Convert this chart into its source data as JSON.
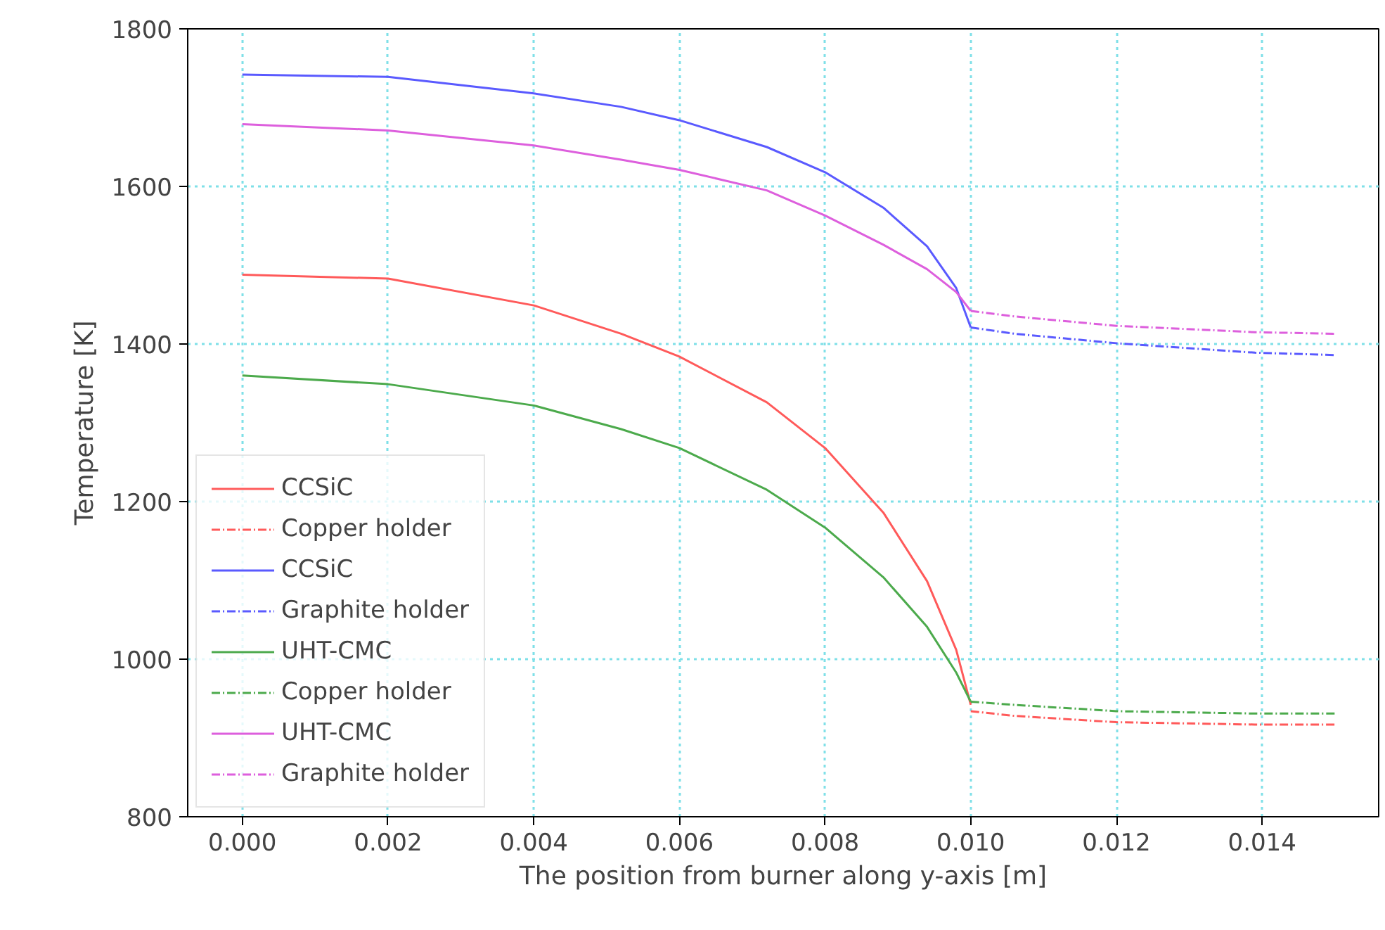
{
  "chart_data": {
    "type": "line",
    "xlabel": "The position from burner along y-axis [m]",
    "ylabel": "Temperature [K]",
    "xlim": [
      -0.00075,
      0.0156
    ],
    "ylim": [
      800,
      1800
    ],
    "xticks": [
      {
        "value": 0,
        "label": "0.000"
      },
      {
        "value": 0.002,
        "label": "0.002"
      },
      {
        "value": 0.004,
        "label": "0.004"
      },
      {
        "value": 0.006,
        "label": "0.006"
      },
      {
        "value": 0.008,
        "label": "0.008"
      },
      {
        "value": 0.01,
        "label": "0.010"
      },
      {
        "value": 0.012,
        "label": "0.012"
      },
      {
        "value": 0.014,
        "label": "0.014"
      }
    ],
    "yticks": [
      800,
      1000,
      1200,
      1400,
      1600,
      1800
    ],
    "grid": true,
    "legend": "bottom left",
    "series": [
      {
        "name": "CCSiC",
        "color": "#ff5a5a",
        "line_style": "solid",
        "x": [
          0,
          0.002,
          0.004,
          0.0052,
          0.006,
          0.0072,
          0.008,
          0.0088,
          0.0094,
          0.0098,
          0.01
        ],
        "values": [
          1488,
          1483,
          1449,
          1413,
          1384,
          1326,
          1268,
          1186,
          1099,
          1012,
          942
        ]
      },
      {
        "name": "Copper holder",
        "color": "#ff5a5a",
        "line_style": "dashed",
        "x": [
          0.01,
          0.0106,
          0.012,
          0.0139,
          0.015
        ],
        "values": [
          934,
          928,
          920,
          917,
          917
        ]
      },
      {
        "name": "CCSiC",
        "color": "#5a5aff",
        "line_style": "solid",
        "x": [
          0,
          0.002,
          0.004,
          0.0052,
          0.006,
          0.0072,
          0.008,
          0.0088,
          0.0094,
          0.0098,
          0.01
        ],
        "values": [
          1742,
          1739,
          1718,
          1701,
          1684,
          1650,
          1618,
          1573,
          1524,
          1471,
          1421
        ]
      },
      {
        "name": "Graphite holder",
        "color": "#5a5aff",
        "line_style": "dashed",
        "x": [
          0.01,
          0.0106,
          0.012,
          0.0139,
          0.015
        ],
        "values": [
          1421,
          1413,
          1401,
          1389,
          1386
        ]
      },
      {
        "name": "UHT-CMC",
        "color": "#4caa4c",
        "line_style": "solid",
        "x": [
          0,
          0.002,
          0.004,
          0.0052,
          0.006,
          0.0072,
          0.008,
          0.0088,
          0.0094,
          0.0098,
          0.01
        ],
        "values": [
          1360,
          1349,
          1322,
          1292,
          1268,
          1215,
          1167,
          1104,
          1041,
          983,
          946
        ]
      },
      {
        "name": "Copper holder",
        "color": "#4caa4c",
        "line_style": "dashed",
        "x": [
          0.01,
          0.0106,
          0.012,
          0.0139,
          0.015
        ],
        "values": [
          946,
          942,
          934,
          931,
          931
        ]
      },
      {
        "name": "UHT-CMC",
        "color": "#dd5fdd",
        "line_style": "solid",
        "x": [
          0,
          0.002,
          0.004,
          0.0052,
          0.006,
          0.0072,
          0.008,
          0.0088,
          0.0094,
          0.0098,
          0.01
        ],
        "values": [
          1679,
          1671,
          1652,
          1634,
          1621,
          1595,
          1563,
          1526,
          1495,
          1466,
          1442
        ]
      },
      {
        "name": "Graphite holder",
        "color": "#dd5fdd",
        "line_style": "dashed",
        "x": [
          0.01,
          0.0106,
          0.012,
          0.0139,
          0.015
        ],
        "values": [
          1442,
          1435,
          1423,
          1415,
          1413
        ]
      }
    ]
  }
}
